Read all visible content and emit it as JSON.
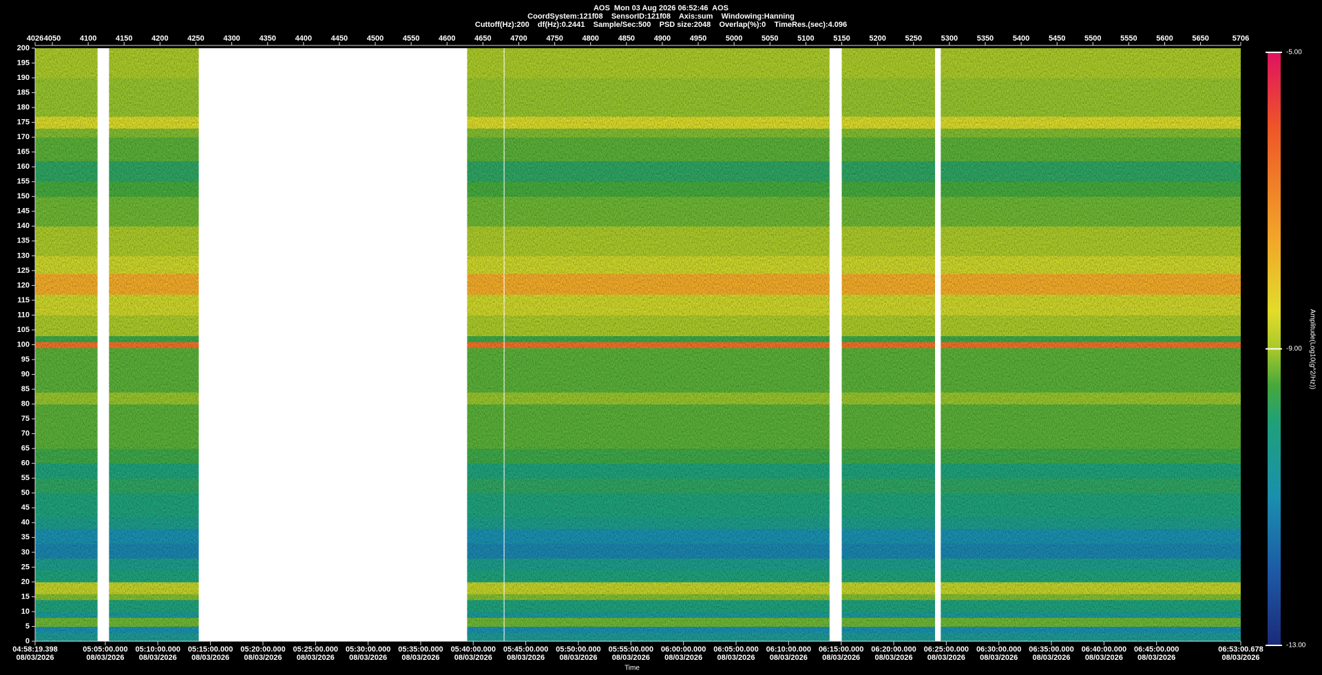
{
  "chart_data": {
    "type": "spectrogram",
    "title": "AOS  Mon 03 Aug 2026 06:52:46  AOS",
    "subtitle": "CoordSystem:121f08    SensorID:121f08    Axis:sum    Windowing:Hanning",
    "subtitle2": "Cuttoff(Hz):200    df(Hz):0.2441    Sample/Sec:500    PSD size:2048    Overlap(%):0    TimeRes.(sec):4.096",
    "xlabel": "Time",
    "colorbar_label": "Amplitude(Log10(g^2/Hz))",
    "xlim": [
      4026,
      5706
    ],
    "xticks": [
      4026,
      4050,
      4100,
      4150,
      4200,
      4250,
      4300,
      4350,
      4400,
      4450,
      4500,
      4550,
      4600,
      4650,
      4700,
      4750,
      4800,
      4850,
      4900,
      4950,
      5000,
      5050,
      5100,
      5150,
      5200,
      5250,
      5300,
      5350,
      5400,
      5450,
      5500,
      5550,
      5600,
      5650,
      5706
    ],
    "x2ticks": [
      {
        "value": 4026,
        "label": "04:58:19.398",
        "date": "08/03/2026"
      },
      {
        "value": 4123.8,
        "label": "05:05:00.000",
        "date": "08/03/2026"
      },
      {
        "value": 4197.04,
        "label": "05:10:00.000",
        "date": "08/03/2026"
      },
      {
        "value": 4270.29,
        "label": "05:15:00.000",
        "date": "08/03/2026"
      },
      {
        "value": 4343.53,
        "label": "05:20:00.000",
        "date": "08/03/2026"
      },
      {
        "value": 4416.77,
        "label": "05:25:00.000",
        "date": "08/03/2026"
      },
      {
        "value": 4490.01,
        "label": "05:30:00.000",
        "date": "08/03/2026"
      },
      {
        "value": 4563.26,
        "label": "05:35:00.000",
        "date": "08/03/2026"
      },
      {
        "value": 4636.5,
        "label": "05:40:00.000",
        "date": "08/03/2026"
      },
      {
        "value": 4709.74,
        "label": "05:45:00.000",
        "date": "08/03/2026"
      },
      {
        "value": 4782.98,
        "label": "05:50:00.000",
        "date": "08/03/2026"
      },
      {
        "value": 4856.23,
        "label": "05:55:00.000",
        "date": "08/03/2026"
      },
      {
        "value": 4929.47,
        "label": "06:00:00.000",
        "date": "08/03/2026"
      },
      {
        "value": 5002.71,
        "label": "06:05:00.000",
        "date": "08/03/2026"
      },
      {
        "value": 5075.95,
        "label": "06:10:00.000",
        "date": "08/03/2026"
      },
      {
        "value": 5149.2,
        "label": "06:15:00.000",
        "date": "08/03/2026"
      },
      {
        "value": 5222.44,
        "label": "06:20:00.000",
        "date": "08/03/2026"
      },
      {
        "value": 5295.68,
        "label": "06:25:00.000",
        "date": "08/03/2026"
      },
      {
        "value": 5368.92,
        "label": "06:30:00.000",
        "date": "08/03/2026"
      },
      {
        "value": 5442.17,
        "label": "06:35:00.000",
        "date": "08/03/2026"
      },
      {
        "value": 5515.41,
        "label": "06:40:00.000",
        "date": "08/03/2026"
      },
      {
        "value": 5588.65,
        "label": "06:45:00.000",
        "date": "08/03/2026"
      },
      {
        "value": 5706,
        "label": "06:53:00.678",
        "date": "08/03/2026"
      }
    ],
    "ylim": [
      0,
      200
    ],
    "yticks": [
      0,
      5,
      10,
      15,
      20,
      25,
      30,
      35,
      40,
      45,
      50,
      55,
      60,
      65,
      70,
      75,
      80,
      85,
      90,
      95,
      100,
      105,
      110,
      115,
      120,
      125,
      130,
      135,
      140,
      145,
      150,
      155,
      160,
      165,
      170,
      175,
      180,
      185,
      190,
      195,
      200
    ],
    "segments": [
      [
        4026,
        4113
      ],
      [
        4129,
        4254
      ],
      [
        4628,
        4679
      ],
      [
        4680,
        5133
      ],
      [
        5150,
        5280
      ],
      [
        5288,
        5706
      ]
    ],
    "bins": [
      0,
      3,
      5,
      8,
      10,
      14,
      16,
      20,
      24,
      28,
      33,
      38,
      42,
      50,
      55,
      60,
      65,
      80,
      84,
      99,
      101,
      103,
      110,
      117,
      124,
      130,
      140,
      150,
      155,
      162,
      170,
      173,
      177,
      190,
      200
    ],
    "levels": [
      -10.5,
      -11,
      -9.3,
      -10.5,
      -10,
      -9.2,
      -8.8,
      -10,
      -10.3,
      -11.2,
      -11,
      -10.3,
      -10,
      -9.8,
      -10,
      -9.6,
      -9.4,
      -9.1,
      -9.4,
      -6.5,
      -9.6,
      -9.0,
      -8.7,
      -7.6,
      -8.7,
      -9.0,
      -9.3,
      -9.5,
      -9.8,
      -9.4,
      -9.2,
      -8.6,
      -9.1,
      -9.0
    ],
    "clim": [
      -13,
      -5
    ],
    "cticks": [
      {
        "value": -5,
        "label": "-5.00"
      },
      {
        "value": -9,
        "label": "-9.00"
      },
      {
        "value": -13,
        "label": "-13.00"
      }
    ],
    "colormap": [
      {
        "value": -13,
        "color": "#1b2a7a"
      },
      {
        "value": -12,
        "color": "#1d5aa6"
      },
      {
        "value": -11,
        "color": "#1a8fae"
      },
      {
        "value": -10,
        "color": "#1fa07a"
      },
      {
        "value": -9.5,
        "color": "#45a83c"
      },
      {
        "value": -9,
        "color": "#a9c829"
      },
      {
        "value": -8.5,
        "color": "#e2dc2a"
      },
      {
        "value": -7.5,
        "color": "#f2a529"
      },
      {
        "value": -6,
        "color": "#ee5528"
      },
      {
        "value": -5,
        "color": "#e0115f"
      }
    ]
  }
}
